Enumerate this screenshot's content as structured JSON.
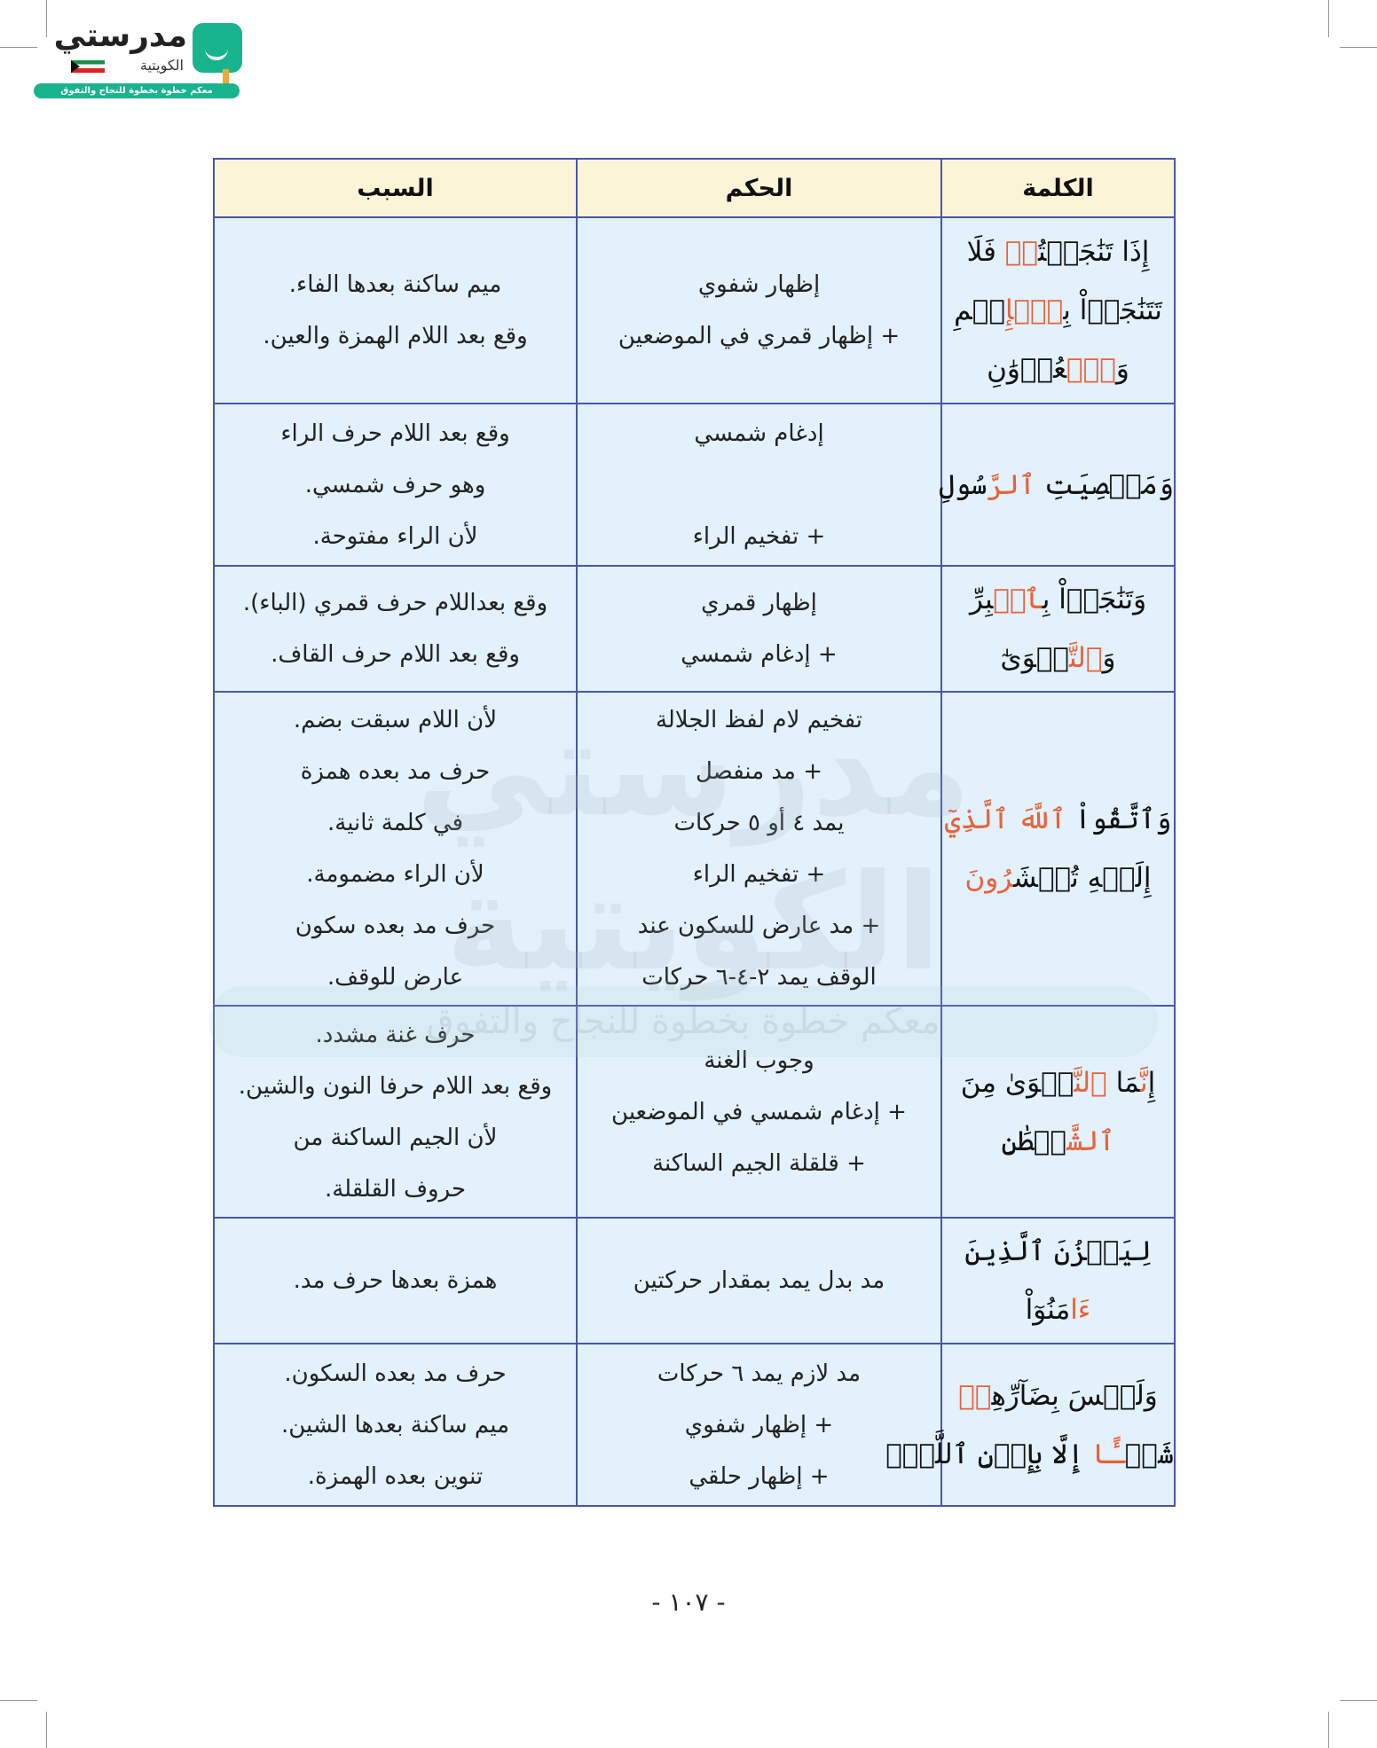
{
  "logo": {
    "title": "مدرستي",
    "subtitle": "الكويتية",
    "tagline": "معكم خطوة بخطوة للنجاح والتفوق",
    "brand_color": "#18b48e"
  },
  "watermark": {
    "title": "مدرستي الكويتية",
    "tagline": "معكم خطوة بخطوة للنجاح والتفوق"
  },
  "colors": {
    "header_bg": "#fcf4d6",
    "cell_bg": "#e2f1fb",
    "border": "#4a55a8",
    "highlight": "#e8623a"
  },
  "table": {
    "headers": [
      "الكلمة",
      "الحكم",
      "السبب"
    ],
    "rows": [
      {
        "word": [
          [
            {
              "t": "إِذَا تَنَٰجَيۡتُ"
            },
            {
              "t": "مۡ",
              "hl": true
            },
            {
              "t": " فَلَا"
            }
          ],
          [
            {
              "t": "تَتَنَٰجَوۡاْ بِ"
            },
            {
              "t": "ٱلۡإِ",
              "hl": true
            },
            {
              "t": "ثۡمِ"
            }
          ],
          [
            {
              "t": "وَ"
            },
            {
              "t": "ٱلۡ",
              "hl": true
            },
            {
              "t": "عُدۡوَٰنِ"
            }
          ]
        ],
        "ruling": [
          "إظهار شفوي",
          "+ إظهار قمري في الموضعين"
        ],
        "reason": [
          "ميم ساكنة بعدها الفاء.",
          "وقع بعد اللام الهمزة والعين."
        ]
      },
      {
        "word": [
          [
            {
              "t": "وَمَعۡصِيَتِ "
            },
            {
              "t": "ٱلرَّ",
              "hl": true
            },
            {
              "t": "سُولِ"
            }
          ]
        ],
        "ruling": [
          "إدغام شمسي",
          "",
          "+ تفخيم الراء"
        ],
        "reason": [
          "وقع بعد اللام حرف الراء",
          "وهو حرف شمسي.",
          "لأن الراء مفتوحة."
        ]
      },
      {
        "word": [
          [
            {
              "t": "وَتَنَٰجَوۡاْ بِ"
            },
            {
              "t": "ٱلۡ",
              "hl": true
            },
            {
              "t": "بِرِّ"
            }
          ],
          [
            {
              "t": "وَ"
            },
            {
              "t": "ٱلتَّ",
              "hl": true
            },
            {
              "t": "قۡوَىٰٓ"
            }
          ]
        ],
        "ruling": [
          "إظهار قمري",
          "+ إدغام شمسي"
        ],
        "reason": [
          "وقع بعداللام حرف قمري (الباء).",
          "وقع بعد اللام حرف القاف."
        ]
      },
      {
        "word": [
          [
            {
              "t": "وَٱتَّقُواْ "
            },
            {
              "t": "ٱللَّهَ",
              "hl": true
            },
            {
              "t": " "
            },
            {
              "t": "ٱلَّذِيٓ",
              "hl": true
            }
          ],
          [
            {
              "t": "إِلَيۡهِ تُحۡشَ"
            },
            {
              "t": "رُونَ",
              "hl": true
            }
          ]
        ],
        "ruling": [
          "تفخيم لام لفظ الجلالة",
          "+ مد منفصل",
          "يمد ٤ أو ٥ حركات",
          "+ تفخيم الراء",
          "+ مد عارض للسكون عند",
          "الوقف يمد ٢-٤-٦ حركات"
        ],
        "reason": [
          "لأن اللام سبقت بضم.",
          "حرف مد بعده همزة",
          "في كلمة ثانية.",
          "لأن الراء مضمومة.",
          "حرف مد بعده سكون",
          "عارض للوقف."
        ]
      },
      {
        "word": [
          [
            {
              "t": "إِ"
            },
            {
              "t": "نَّ",
              "hl": true
            },
            {
              "t": "مَا "
            },
            {
              "t": "ٱلنَّ",
              "hl": true
            },
            {
              "t": "جۡوَىٰ مِنَ"
            }
          ],
          [
            {
              "t": "ٱلشَّ",
              "hl": true
            },
            {
              "t": "يۡطَٰنِ"
            }
          ]
        ],
        "ruling": [
          "وجوب الغنة",
          "+ إدغام شمسي في الموضعين",
          "+ قلقلة الجيم الساكنة"
        ],
        "reason": [
          "حرف غنة مشدد.",
          "وقع بعد اللام حرفا النون والشين.",
          "لأن الجيم الساكنة من",
          "حروف القلقلة."
        ]
      },
      {
        "word": [
          [
            {
              "t": "لِيَحۡزُنَ ٱلَّذِينَ"
            }
          ],
          [
            {
              "t": "ءَا",
              "hl": true
            },
            {
              "t": "مَنُوٓاْ"
            }
          ]
        ],
        "ruling": [
          "مد بدل يمد بمقدار حركتين"
        ],
        "reason": [
          "همزة بعدها حرف مد."
        ]
      },
      {
        "word": [
          [
            {
              "t": "وَلَيۡسَ بِضَآرِّهِ"
            },
            {
              "t": "مۡ",
              "hl": true
            }
          ],
          [
            {
              "t": "شَيۡ"
            },
            {
              "t": "ـًٔا",
              "hl": true
            },
            {
              "t": " إِلَّا بِإِذۡنِ ٱللَّهِۚ"
            }
          ]
        ],
        "ruling": [
          "مد لازم يمد ٦ حركات",
          "+ إظهار شفوي",
          "+ إظهار حلقي"
        ],
        "reason": [
          "حرف مد بعده السكون.",
          "ميم ساكنة بعدها الشين.",
          "تنوين بعده الهمزة."
        ]
      }
    ]
  },
  "page_number": "- ١٠٧ -"
}
